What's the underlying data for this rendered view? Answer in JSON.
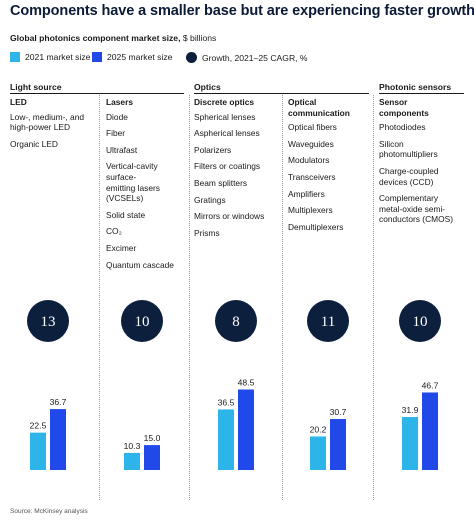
{
  "title": "Components have a smaller base but are experiencing faster growth.",
  "subtitle_bold": "Global photonics component market size,",
  "subtitle_unit": " $ billions",
  "legend": {
    "item_2021": "2021 market size",
    "item_2025": "2025 market size",
    "item_growth": "Growth, 2021–25 CAGR, %"
  },
  "colors": {
    "market_2021": "#2db5e9",
    "market_2025": "#2148e8",
    "growth": "#0c1f3d"
  },
  "categories": [
    {
      "label": "Light source"
    },
    {
      "label": "Optics"
    },
    {
      "label": "Photonic sensors"
    }
  ],
  "columns": [
    {
      "header": "LED",
      "items": [
        "Low-, medium-, and\nhigh-power LED",
        "Organic LED"
      ]
    },
    {
      "header": "Lasers",
      "items": [
        "Diode",
        "Fiber",
        "Ultrafast",
        "Vertical-cavity\nsurface-\nemitting lasers\n(VCSELs)",
        "Solid state",
        "CO₂",
        "Excimer",
        "Quantum cascade"
      ]
    },
    {
      "header": "Discrete optics",
      "items": [
        "Spherical lenses",
        "Aspherical lenses",
        "Polarizers",
        "Filters or coatings",
        "Beam splitters",
        "Gratings",
        "Mirrors or windows",
        "Prisms"
      ]
    },
    {
      "header": "Optical\ncommunication",
      "items": [
        "Optical fibers",
        "Waveguides",
        "Modulators",
        "Transceivers",
        "Amplifiers",
        "Multiplexers",
        "Demultiplexers"
      ]
    },
    {
      "header": "Sensor\ncomponents",
      "items": [
        "Photodiodes",
        "Silicon\nphotomultipliers",
        "Charge-coupled\ndevices (CCD)",
        "Complementary\nmetal-oxide semi-\nconductors (CMOS)"
      ]
    }
  ],
  "chart_data": {
    "type": "bar",
    "categories": [
      "LED",
      "Lasers",
      "Discrete optics",
      "Optical communication",
      "Sensor components"
    ],
    "series": [
      {
        "name": "2021 market size",
        "values": [
          22.5,
          10.3,
          36.5,
          20.2,
          31.9
        ]
      },
      {
        "name": "2025 market size",
        "values": [
          36.7,
          15.0,
          48.5,
          30.7,
          46.7
        ]
      },
      {
        "name": "Growth, 2021–25 CAGR, %",
        "values": [
          13,
          10,
          8,
          11,
          10
        ]
      }
    ],
    "ylabel": "$ billions",
    "ylim": [
      0,
      50
    ]
  },
  "source": "Source: McKinsey analysis"
}
